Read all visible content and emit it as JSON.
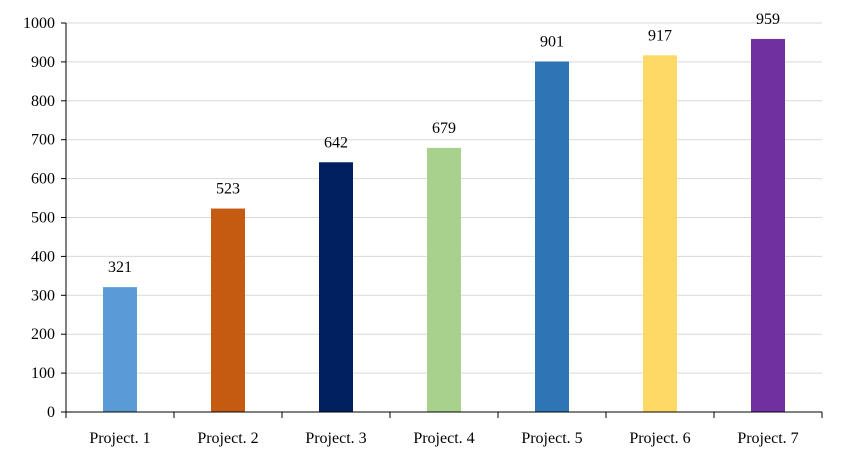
{
  "chart_data": {
    "type": "bar",
    "categories": [
      "Project. 1",
      "Project. 2",
      "Project. 3",
      "Project. 4",
      "Project. 5",
      "Project. 6",
      "Project. 7"
    ],
    "values": [
      321,
      523,
      642,
      679,
      901,
      917,
      959
    ],
    "bar_colors": [
      "#5B9BD5",
      "#C55A11",
      "#002060",
      "#A9D18E",
      "#2E75B6",
      "#FFD966",
      "#7030A0"
    ],
    "ylim": [
      0,
      1000
    ],
    "yticks": [
      0,
      100,
      200,
      300,
      400,
      500,
      600,
      700,
      800,
      900,
      1000
    ],
    "grid": true,
    "legend": "none",
    "data_labels": true,
    "title": "",
    "xlabel": "",
    "ylabel": ""
  }
}
